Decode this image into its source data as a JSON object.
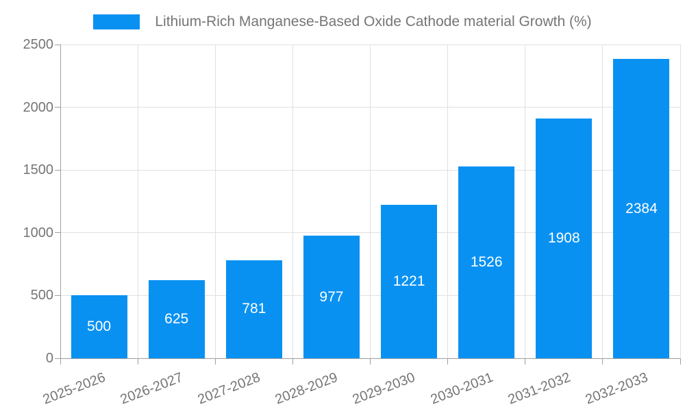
{
  "chart_data": {
    "type": "bar",
    "title": "",
    "legend": "Lithium-Rich Manganese-Based Oxide Cathode material Growth (%)",
    "legend_position": "top-center",
    "categories": [
      "2025-2026",
      "2026-2027",
      "2027-2028",
      "2028-2029",
      "2029-2030",
      "2030-2031",
      "2031-2032",
      "2032-2033"
    ],
    "values": [
      500,
      625,
      781,
      977,
      1221,
      1526,
      1908,
      2384
    ],
    "xlabel": "",
    "ylabel": "",
    "ylim": [
      0,
      2500
    ],
    "yticks": [
      0,
      500,
      1000,
      1500,
      2000,
      2500
    ],
    "grid": true,
    "x_label_rotation_deg": -21,
    "bar_labels_inside": true,
    "colors": {
      "bar": "#0991f2",
      "bar_label": "#ffffff",
      "axis_text": "#757575",
      "gridline": "#e0e0e0",
      "axis_line": "#9e9e9e",
      "background": "#ffffff"
    }
  }
}
